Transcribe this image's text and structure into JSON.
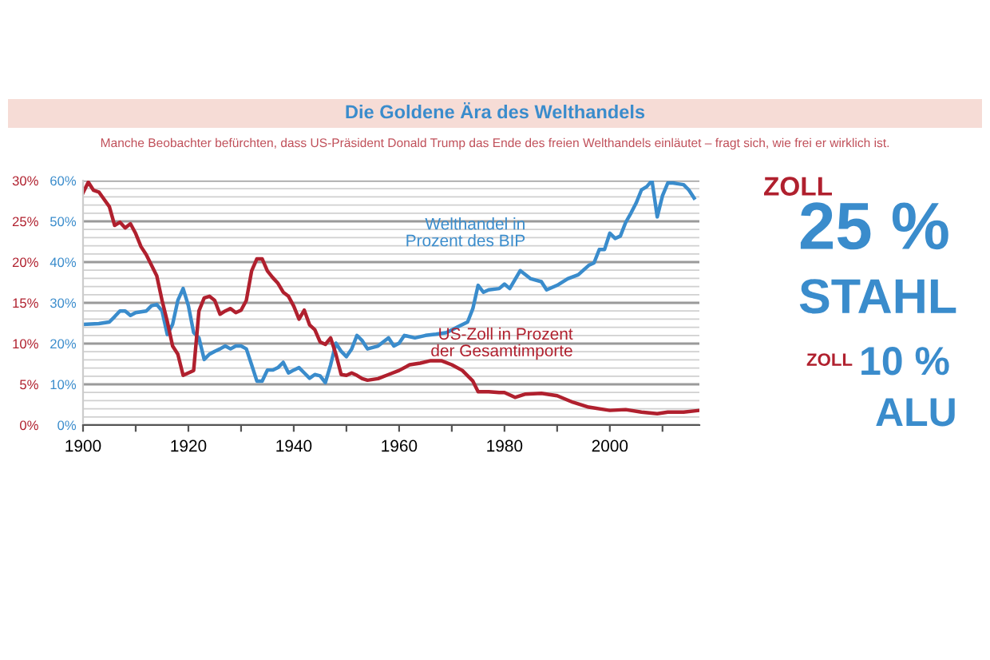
{
  "chart_data": {
    "type": "line",
    "title": "Die Goldene Ära des Welthandels",
    "subtitle": "Manche Beobachter befürchten, dass US-Präsident Donald Trump das Ende des freien Welthandels einläutet – fragt sich, wie frei er wirklich ist.",
    "annotations": [
      "ZOLL",
      "25 %",
      "STAHL",
      "ZOLL",
      "10 %",
      "ALU"
    ],
    "xlim": [
      1900,
      2017
    ],
    "xticks": [
      1900,
      {
        "value": 1910,
        "label": null
      },
      1920,
      {
        "value": 1930,
        "label": null
      },
      1940,
      {
        "value": 1950,
        "label": null
      },
      1960,
      {
        "value": 1970,
        "label": null
      },
      1980,
      {
        "value": 1990,
        "label": null
      },
      2000,
      {
        "value": 2010,
        "label": null
      }
    ],
    "ylim": [
      0,
      30
    ],
    "yticks": [
      {
        "value": 0,
        "label": "0%"
      },
      {
        "value": 1,
        "label": null
      },
      {
        "value": 2,
        "label": null
      },
      {
        "value": 3,
        "label": null
      },
      {
        "value": 4,
        "label": null
      },
      {
        "value": 5,
        "label": "5%"
      },
      {
        "value": 6,
        "label": null
      },
      {
        "value": 7,
        "label": null
      },
      {
        "value": 8,
        "label": null
      },
      {
        "value": 9,
        "label": null
      },
      {
        "value": 10,
        "label": "10%"
      },
      {
        "value": 11,
        "label": null
      },
      {
        "value": 12,
        "label": null
      },
      {
        "value": 13,
        "label": null
      },
      {
        "value": 14,
        "label": null
      },
      {
        "value": 15,
        "label": "15%"
      },
      {
        "value": 16,
        "label": null
      },
      {
        "value": 17,
        "label": null
      },
      {
        "value": 18,
        "label": null
      },
      {
        "value": 19,
        "label": null
      },
      {
        "value": 20,
        "label": "20%"
      },
      {
        "value": 21,
        "label": null
      },
      {
        "value": 22,
        "label": null
      },
      {
        "value": 23,
        "label": null
      },
      {
        "value": 24,
        "label": null
      },
      {
        "value": 25,
        "label": "25%"
      },
      {
        "value": 26,
        "label": null
      },
      {
        "value": 27,
        "label": null
      },
      {
        "value": 28,
        "label": null
      },
      {
        "value": 29,
        "label": null
      },
      {
        "value": 30,
        "label": "30%"
      }
    ],
    "y2lim": [
      0,
      60
    ],
    "y2ticks": [
      {
        "value": 0,
        "label": "0%"
      },
      {
        "value": 10,
        "label": "10%"
      },
      {
        "value": 20,
        "label": "20%"
      },
      {
        "value": 30,
        "label": "30%"
      },
      {
        "value": 40,
        "label": "40%"
      },
      {
        "value": 50,
        "label": "50%"
      },
      {
        "value": 60,
        "label": "60%"
      }
    ],
    "grid": "y",
    "line_style": "solid",
    "series": [
      {
        "name": "Welthandel in\nProzent des BIP",
        "color": "#3a8ccc",
        "axis": "y2",
        "x": [
          1900,
          1903,
          1905,
          1906,
          1907,
          1908,
          1909,
          1910,
          1912,
          1913,
          1914,
          1915,
          1916,
          1917,
          1918,
          1919,
          1920,
          1921,
          1922,
          1923,
          1924,
          1925,
          1926,
          1927,
          1928,
          1929,
          1930,
          1931,
          1932,
          1933,
          1934,
          1935,
          1936,
          1937,
          1938,
          1939,
          1940,
          1941,
          1942,
          1943,
          1944,
          1945,
          1946,
          1947,
          1948,
          1949,
          1950,
          1951,
          1952,
          1953,
          1954,
          1956,
          1958,
          1959,
          1960,
          1961,
          1963,
          1965,
          1967,
          1969,
          1971,
          1973,
          1974,
          1975,
          1976,
          1977,
          1979,
          1980,
          1981,
          1983,
          1985,
          1987,
          1988,
          1990,
          1992,
          1994,
          1996,
          1997,
          1998,
          1999,
          2000,
          2001,
          2002,
          2003,
          2004,
          2005,
          2006,
          2007,
          2008,
          2009,
          2010,
          2011,
          2012,
          2013,
          2014,
          2015,
          2016
        ],
        "values": [
          24.7,
          24.9,
          25.3,
          26.6,
          28,
          28,
          26.9,
          27.6,
          28,
          29.3,
          29.6,
          28,
          22.2,
          24.7,
          30.6,
          33.5,
          29.3,
          22.7,
          21.4,
          16.1,
          17.4,
          18.1,
          18.7,
          19.4,
          18.7,
          19.4,
          19.4,
          18.7,
          14.8,
          10.8,
          10.8,
          13.5,
          13.5,
          14.1,
          15.4,
          12.8,
          13.5,
          14.1,
          12.8,
          11.5,
          12.4,
          12.1,
          10.4,
          14.8,
          20.1,
          18.1,
          16.8,
          18.7,
          22,
          20.7,
          18.7,
          19.4,
          21.4,
          19.4,
          20.1,
          22,
          21.4,
          22,
          22.3,
          22.7,
          24,
          25.3,
          28.6,
          34.3,
          32.6,
          33.2,
          33.5,
          34.6,
          33.5,
          37.9,
          35.9,
          35.2,
          33.2,
          34.3,
          35.9,
          36.9,
          39.2,
          39.8,
          43.1,
          43.1,
          47.1,
          45.8,
          46.4,
          49.7,
          52,
          54.5,
          57.7,
          58.5,
          60,
          51.1,
          56.3,
          59.4,
          59.4,
          59.2,
          59,
          57.7,
          55.7
        ]
      },
      {
        "name": "US-Zoll in Prozent\nder Gesamtimporte",
        "color": "#b0202e",
        "x": [
          1900,
          1901,
          1902,
          1903,
          1905,
          1906,
          1907,
          1908,
          1909,
          1910,
          1911,
          1912,
          1913,
          1914,
          1915,
          1916,
          1917,
          1918,
          1919,
          1920,
          1921,
          1922,
          1923,
          1924,
          1925,
          1926,
          1927,
          1928,
          1929,
          1930,
          1931,
          1932,
          1933,
          1934,
          1935,
          1936,
          1937,
          1938,
          1939,
          1940,
          1941,
          1942,
          1943,
          1944,
          1945,
          1946,
          1947,
          1948,
          1949,
          1950,
          1951,
          1952,
          1953,
          1954,
          1956,
          1958,
          1960,
          1962,
          1964,
          1966,
          1968,
          1970,
          1972,
          1974,
          1975,
          1977,
          1979,
          1980,
          1982,
          1984,
          1987,
          1990,
          1993,
          1996,
          2000,
          2003,
          2006,
          2009,
          2011,
          2014,
          2017
        ],
        "values": [
          28.5,
          29.8,
          28.8,
          28.6,
          26.8,
          24.5,
          24.9,
          24.2,
          24.7,
          23.5,
          21.9,
          20.9,
          19.6,
          18.3,
          15.3,
          12.7,
          9.7,
          8.7,
          6.1,
          6.4,
          6.7,
          14.0,
          15.6,
          15.8,
          15.3,
          13.6,
          14,
          14.3,
          13.8,
          14.1,
          15.3,
          18.9,
          20.4,
          20.4,
          18.9,
          18.1,
          17.4,
          16.3,
          15.8,
          14.6,
          13.0,
          14.1,
          12.3,
          11.7,
          10.2,
          9.9,
          10.7,
          8.7,
          6.2,
          6.1,
          6.4,
          6.1,
          5.7,
          5.5,
          5.7,
          6.2,
          6.7,
          7.4,
          7.6,
          7.9,
          7.9,
          7.4,
          6.7,
          5.4,
          4.1,
          4.1,
          4.0,
          4.0,
          3.4,
          3.8,
          3.9,
          3.6,
          2.8,
          2.2,
          1.8,
          1.9,
          1.6,
          1.4,
          1.6,
          1.6,
          1.8
        ]
      }
    ]
  }
}
